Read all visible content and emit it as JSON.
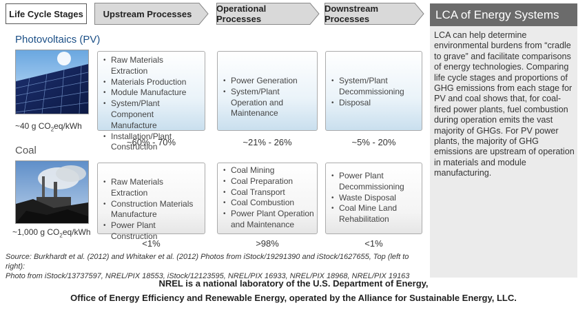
{
  "header": {
    "stage_label": "Life Cycle Stages",
    "columns": [
      "Upstream Processes",
      "Operational Processes",
      "Downstream  Processes"
    ]
  },
  "pv": {
    "title": "Photovoltaics (PV)",
    "emissions_prefix": "~40 g CO",
    "emissions_sub": "2",
    "emissions_suffix": "eq/kWh",
    "upstream": [
      "Raw Materials Extraction",
      "Materials Production",
      "Module Manufacture",
      "System/Plant Component Manufacture",
      "Installation/Plant Construction"
    ],
    "operational": [
      "Power Generation",
      "System/Plant Operation and Maintenance"
    ],
    "downstream": [
      "System/Plant Decommissioning",
      "Disposal"
    ],
    "percents": [
      "~60% - 70%",
      "~21% - 26%",
      "~5% - 20%"
    ]
  },
  "coal": {
    "title": "Coal",
    "emissions_prefix": "~1,000 g CO",
    "emissions_sub": "2",
    "emissions_suffix": "eq/kWh",
    "upstream": [
      "Raw Materials Extraction",
      "Construction Materials Manufacture",
      "Power Plant Construction"
    ],
    "operational": [
      "Coal Mining",
      "Coal Preparation",
      "Coal Transport",
      "Coal Combustion",
      "Power Plant Operation and Maintenance"
    ],
    "downstream": [
      "Power Plant Decommissioning",
      "Waste Disposal",
      "Coal Mine Land Rehabilitation"
    ],
    "percents": [
      "<1%",
      ">98%",
      "<1%"
    ]
  },
  "source": {
    "line1": "Source: Burkhardt et al. (2012) and Whitaker et al. (2012)  Photos from iStock/19291390 and iStock/1627655, Top (left to right):",
    "line2": "Photo from iStock/13737597, NREL/PIX 18553, iStock/12123595, NREL/PIX 16933, NREL/PIX 18968, NREL/PIX 19163"
  },
  "footer": {
    "line1": "NREL is a national laboratory of the U.S. Department of Energy,",
    "line2": "Office of Energy Efficiency and Renewable Energy, operated by the Alliance for Sustainable Energy, LLC."
  },
  "panel": {
    "title": "LCA of Energy Systems",
    "body": "LCA can help determine environmental burdens from “cradle to grave” and facilitate comparisons of energy technologies. Comparing life cycle stages and proportions of GHG emissions from each stage for PV and coal shows that, for coal-fired power plants, fuel combustion during operation emits the vast majority of GHGs. For PV power plants, the majority of GHG emissions are upstream of operation in materials and module manufacturing."
  },
  "colors": {
    "pv_title": "#1b4f86",
    "panel_header": "#6b6b6b",
    "panel_bg": "#ebebeb",
    "arrow_fill": "#d9d9d9"
  }
}
